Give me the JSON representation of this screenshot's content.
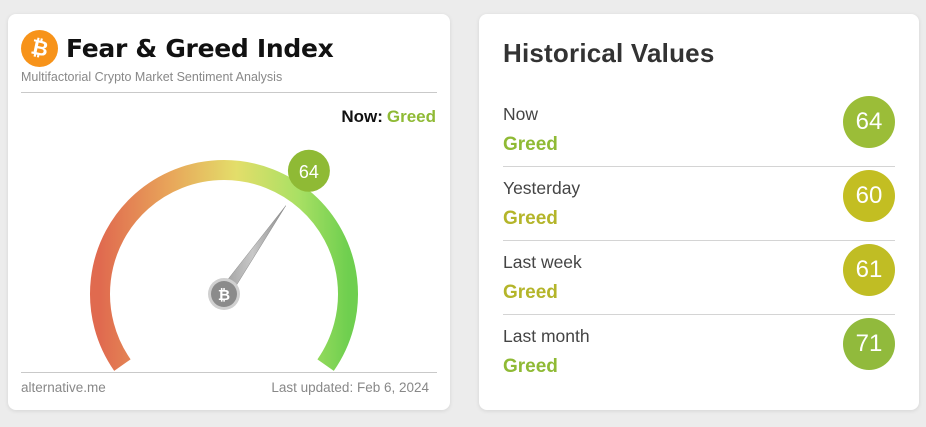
{
  "header": {
    "logo_icon": "bitcoin-icon",
    "title": "Fear & Greed Index",
    "subtitle": "Multifactorial Crypto Market Sentiment Analysis"
  },
  "now": {
    "label": "Now:",
    "classification": "Greed",
    "value": "64",
    "classification_color": "#8fba35"
  },
  "gauge": {
    "min": 0,
    "max": 100,
    "value": 64,
    "center_icon": "bitcoin-icon",
    "colors": [
      "#e06a4f",
      "#e8a55a",
      "#e3de6a",
      "#8fdc5f",
      "#6fcf4f"
    ]
  },
  "footer": {
    "source": "alternative.me",
    "updated": "Last updated: Feb 6, 2024"
  },
  "history": {
    "title": "Historical Values",
    "rows": [
      {
        "label": "Now",
        "classification": "Greed",
        "value": "64",
        "circle_color": "#9bbd38",
        "text_color": "#8fba35"
      },
      {
        "label": "Yesterday",
        "classification": "Greed",
        "value": "60",
        "circle_color": "#c3be22",
        "text_color": "#b4b52a"
      },
      {
        "label": "Last week",
        "classification": "Greed",
        "value": "61",
        "circle_color": "#c0bd24",
        "text_color": "#b4b52a"
      },
      {
        "label": "Last month",
        "classification": "Greed",
        "value": "71",
        "circle_color": "#91ba3c",
        "text_color": "#8fba35"
      }
    ]
  }
}
